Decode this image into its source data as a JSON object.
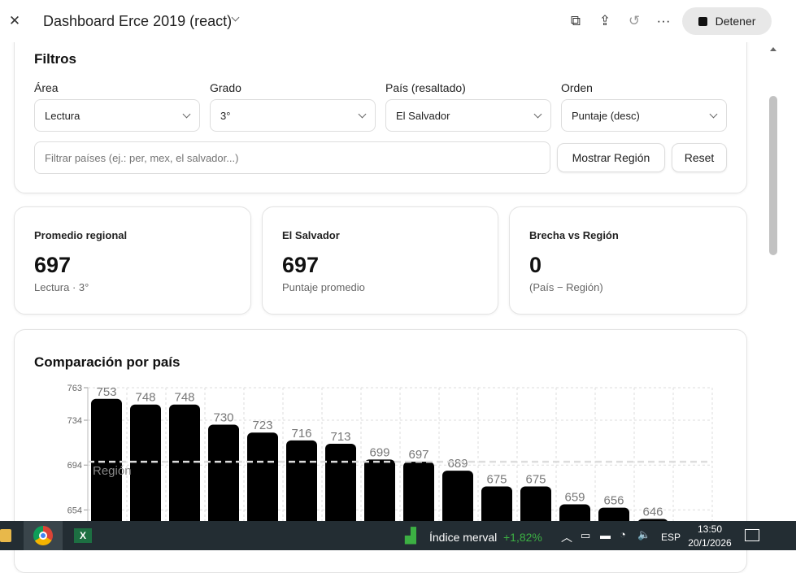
{
  "header": {
    "title": "Dashboard Erce 2019 (react)",
    "stop_label": "Detener",
    "icons": [
      "close-icon",
      "chevron-down-icon",
      "copy-icon",
      "share-icon",
      "history-icon",
      "more-icon",
      "stop-icon"
    ]
  },
  "filters": {
    "title": "Filtros",
    "area": {
      "label": "Área",
      "value": "Lectura"
    },
    "grado": {
      "label": "Grado",
      "value": "3°"
    },
    "pais": {
      "label": "País (resaltado)",
      "value": "El Salvador"
    },
    "orden": {
      "label": "Orden",
      "value": "Puntaje (desc)"
    },
    "search_placeholder": "Filtrar países (ej.: per, mex, el salvador...)",
    "show_region_label": "Mostrar Región",
    "reset_label": "Reset"
  },
  "stats": [
    {
      "title": "Promedio regional",
      "value": "697",
      "sub": "Lectura · 3°"
    },
    {
      "title": "El Salvador",
      "value": "697",
      "sub": "Puntaje promedio"
    },
    {
      "title": "Brecha vs Región",
      "value": "0",
      "sub": "(País − Región)"
    }
  ],
  "chart_data": {
    "type": "bar",
    "title": "Comparación por país",
    "yticks": [
      654,
      694,
      734,
      763
    ],
    "values": [
      753,
      748,
      748,
      730,
      723,
      716,
      713,
      699,
      697,
      689,
      675,
      675,
      659,
      656,
      646
    ],
    "reference_line": {
      "label": "Región",
      "value": 697
    },
    "bar_color": "#000000",
    "grid": true
  },
  "taskbar": {
    "ticker_name": "Índice merval",
    "ticker_change": "+1,82%",
    "ticker_color": "#3cb043",
    "lang": "ESP",
    "time": "13:50",
    "date": "20/1/2026"
  }
}
